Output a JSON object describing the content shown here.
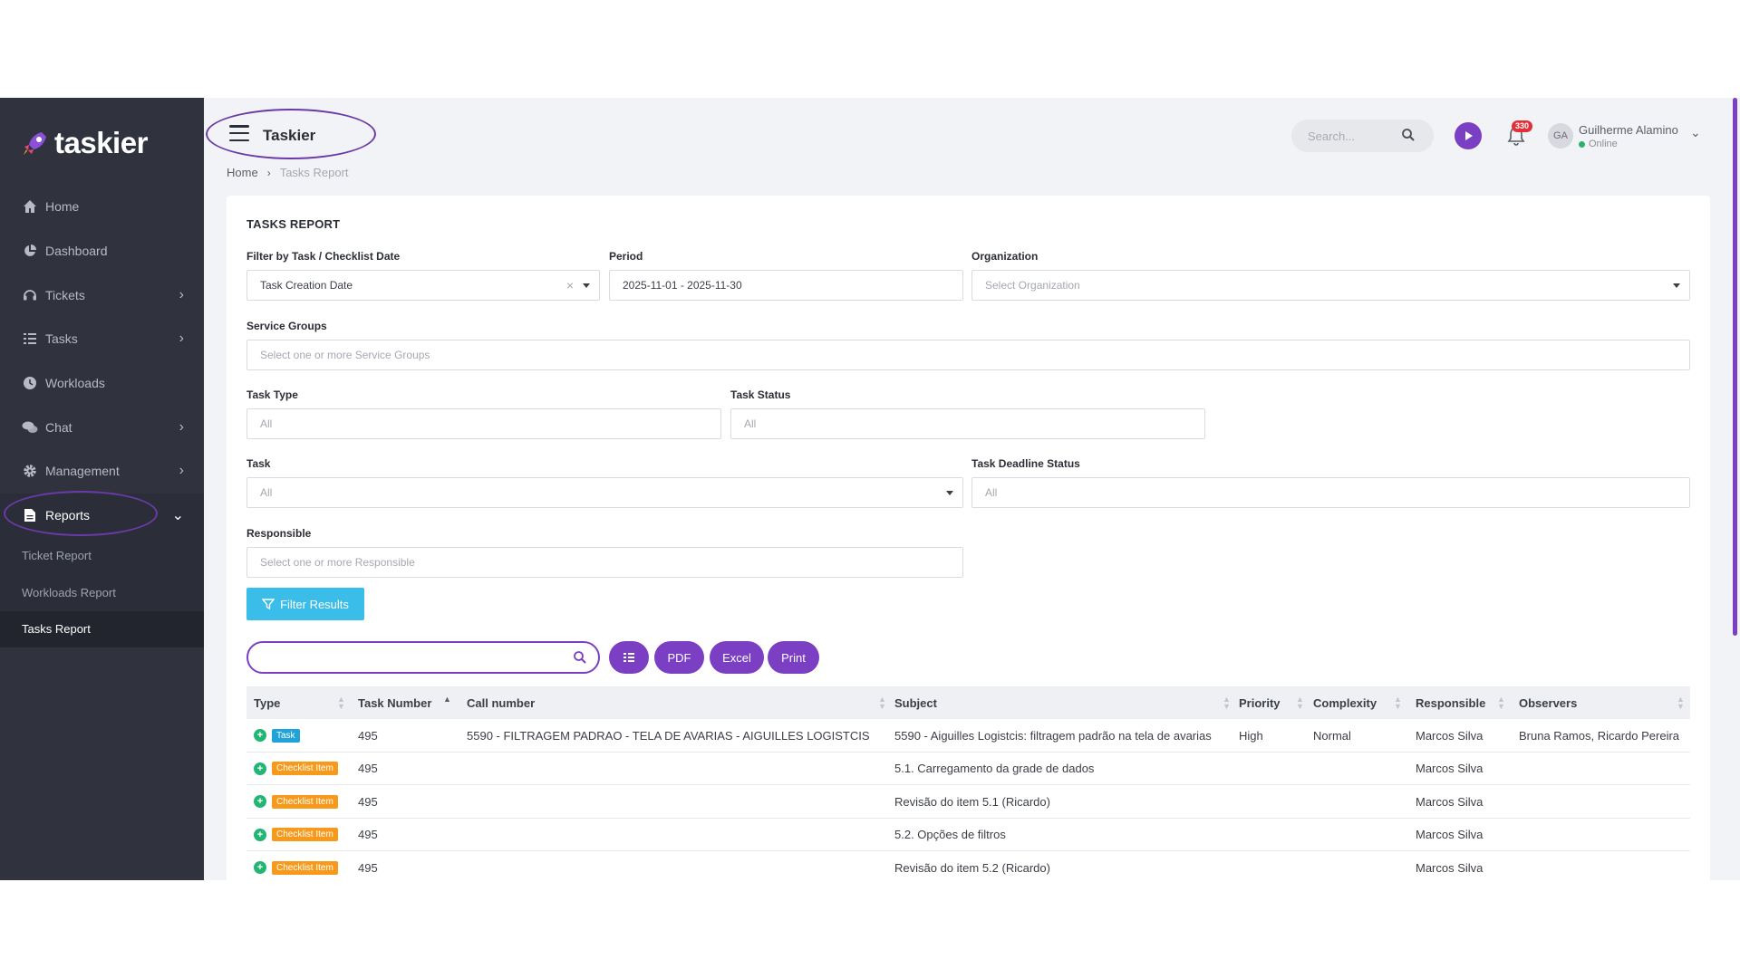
{
  "sidebar": {
    "brand": "taskier",
    "items": [
      {
        "label": "Home",
        "icon": "home-icon"
      },
      {
        "label": "Dashboard",
        "icon": "pie-chart-icon"
      },
      {
        "label": "Tickets",
        "icon": "headset-icon"
      },
      {
        "label": "Tasks",
        "icon": "list-icon"
      },
      {
        "label": "Workloads",
        "icon": "clock-icon"
      },
      {
        "label": "Chat",
        "icon": "chat-icon"
      },
      {
        "label": "Management",
        "icon": "gear-icon"
      },
      {
        "label": "Reports",
        "icon": "file-icon"
      }
    ],
    "sub_items": [
      "Ticket Report",
      "Workloads Report",
      "Tasks Report"
    ]
  },
  "header": {
    "title": "Taskier",
    "breadcrumb": [
      "Home",
      "Tasks Report"
    ],
    "search_placeholder": "Search...",
    "notifications": "330",
    "user": {
      "initials": "GA",
      "name": "Guilherme Alamino",
      "status": "Online"
    }
  },
  "report": {
    "title": "TASKS REPORT",
    "filters": {
      "date_filter_label": "Filter by Task / Checklist Date",
      "date_filter_value": "Task Creation Date",
      "period_label": "Period",
      "period_value": "2025-11-01 - 2025-11-30",
      "organization_label": "Organization",
      "organization_placeholder": "Select Organization",
      "service_groups_label": "Service Groups",
      "service_groups_placeholder": "Select one or more Service Groups",
      "task_type_label": "Task Type",
      "task_type_placeholder": "All",
      "task_status_label": "Task Status",
      "task_status_placeholder": "All",
      "task_label": "Task",
      "task_placeholder": "All",
      "deadline_status_label": "Task Deadline Status",
      "deadline_status_placeholder": "All",
      "responsible_label": "Responsible",
      "responsible_placeholder": "Select one or more Responsible",
      "filter_button": "Filter Results"
    },
    "actions": {
      "pdf": "PDF",
      "excel": "Excel",
      "print": "Print"
    },
    "columns": [
      "Type",
      "Task Number",
      "Call number",
      "Subject",
      "Priority",
      "Complexity",
      "Responsible",
      "Observers"
    ],
    "rows": [
      {
        "type": "Task",
        "task_number": "495",
        "call_number": "5590 - FILTRAGEM PADRAO - TELA DE AVARIAS - AIGUILLES LOGISTCIS",
        "subject": "5590 - Aiguilles Logistcis: filtragem padrão na tela de avarias",
        "priority": "High",
        "complexity": "Normal",
        "responsible": "Marcos Silva",
        "observers": "Bruna Ramos, Ricardo Pereira"
      },
      {
        "type": "Checklist Item",
        "task_number": "495",
        "call_number": "",
        "subject": "5.1. Carregamento da grade de dados",
        "priority": "",
        "complexity": "",
        "responsible": "Marcos Silva",
        "observers": ""
      },
      {
        "type": "Checklist Item",
        "task_number": "495",
        "call_number": "",
        "subject": "Revisão do item 5.1 (Ricardo)",
        "priority": "",
        "complexity": "",
        "responsible": "Marcos Silva",
        "observers": ""
      },
      {
        "type": "Checklist Item",
        "task_number": "495",
        "call_number": "",
        "subject": "5.2. Opções de filtros",
        "priority": "",
        "complexity": "",
        "responsible": "Marcos Silva",
        "observers": ""
      },
      {
        "type": "Checklist Item",
        "task_number": "495",
        "call_number": "",
        "subject": "Revisão do item 5.2 (Ricardo)",
        "priority": "",
        "complexity": "",
        "responsible": "Marcos Silva",
        "observers": ""
      }
    ]
  },
  "colors": {
    "accent": "#7b3fc4",
    "sidebar": "#30333e",
    "filter_button": "#3bbde9",
    "task_badge": "#1fa3d8",
    "checklist_badge": "#f79a1c",
    "annotation": "#6a3aa7"
  }
}
